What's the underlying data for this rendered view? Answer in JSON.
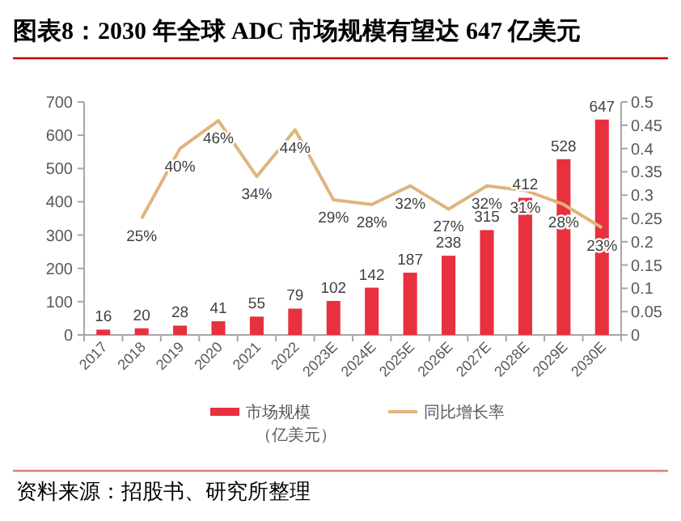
{
  "chart_data": {
    "type": "bar",
    "title": "图表8：2030 年全球 ADC 市场规模有望达 647 亿美元",
    "categories": [
      "2017",
      "2018",
      "2019",
      "2020",
      "2021",
      "2022",
      "2023E",
      "2024E",
      "2025E",
      "2026E",
      "2027E",
      "2028E",
      "2029E",
      "2030E"
    ],
    "series": [
      {
        "name": "市场规模（亿美元）",
        "color": "#e8303e",
        "values": [
          16,
          20,
          28,
          41,
          55,
          79,
          102,
          142,
          187,
          238,
          315,
          412,
          528,
          647
        ],
        "value_labels": [
          "16",
          "20",
          "28",
          "41",
          "55",
          "79",
          "102",
          "142",
          "187",
          "238",
          "315",
          "412",
          "528",
          "647"
        ]
      },
      {
        "name": "同比增长率",
        "type": "line",
        "axis": "y2",
        "color": "#e0b47c",
        "values": [
          null,
          0.25,
          0.4,
          0.46,
          0.34,
          0.44,
          0.29,
          0.28,
          0.32,
          0.27,
          0.32,
          0.31,
          0.28,
          0.23
        ],
        "value_labels": [
          null,
          "25%",
          "40%",
          "46%",
          "34%",
          "44%",
          "29%",
          "28%",
          "32%",
          "27%",
          "32%",
          "31%",
          "28%",
          "23%"
        ]
      }
    ],
    "ylim": [
      0,
      700
    ],
    "yticks": [
      0,
      100,
      200,
      300,
      400,
      500,
      600,
      700
    ],
    "y2lim": [
      0,
      0.5
    ],
    "y2ticks": [
      0,
      0.05,
      0.1,
      0.15,
      0.2,
      0.25,
      0.3,
      0.35,
      0.4,
      0.45,
      0.5
    ],
    "legend": "bottom",
    "grid": false,
    "annotations": [
      "资料来源：招股书、研究所整理"
    ]
  }
}
